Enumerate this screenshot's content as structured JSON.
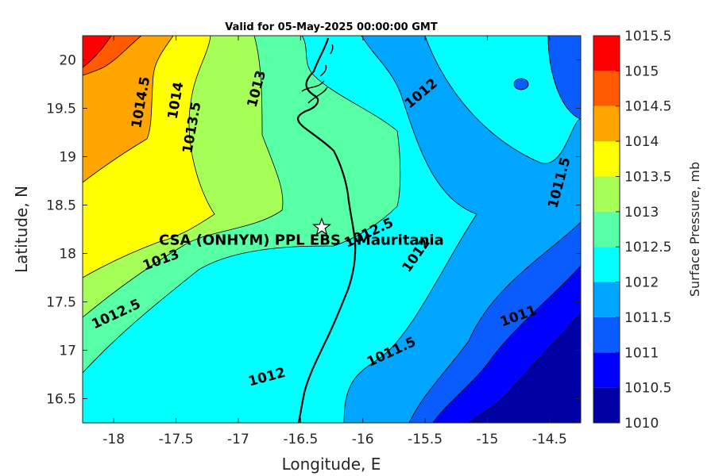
{
  "chart_data": {
    "type": "contour",
    "title": "Valid for 05-May-2025 00:00:00 GMT",
    "xlabel": "Longitude, E",
    "ylabel": "Latitude, N",
    "xlim": [
      -18.25,
      -14.25
    ],
    "ylim": [
      16.25,
      20.25
    ],
    "xticks": [
      -18,
      -17.5,
      -17,
      -16.5,
      -16,
      -15.5,
      -15,
      -14.5
    ],
    "yticks": [
      16.5,
      17,
      17.5,
      18,
      18.5,
      19,
      19.5,
      20
    ],
    "xtick_labels": [
      "-18",
      "-17.5",
      "-17",
      "-16.5",
      "-16",
      "-15.5",
      "-15",
      "-14.5"
    ],
    "ytick_labels": [
      "16.5",
      "17",
      "17.5",
      "18",
      "18.5",
      "19",
      "19.5",
      "20"
    ],
    "colorbar": {
      "label": "Surface Pressure, mb",
      "levels": [
        1010,
        1010.5,
        1011,
        1011.5,
        1012,
        1012.5,
        1013,
        1013.5,
        1014,
        1014.5,
        1015,
        1015.5
      ],
      "tick_labels": [
        "1010",
        "1010.5",
        "1011",
        "1011.5",
        "1012",
        "1012.5",
        "1013",
        "1013.5",
        "1014",
        "1014.5",
        "1015",
        "1015.5"
      ],
      "colors": [
        "#0000a5",
        "#0000ff",
        "#0a5cff",
        "#00a5ff",
        "#00ffff",
        "#57ffa5",
        "#a5ff57",
        "#ffff00",
        "#ffa500",
        "#ff5a00",
        "#ff0000",
        "#a50000"
      ]
    },
    "contour_labels": [
      {
        "text": "1014.5",
        "lon": -17.78,
        "lat": 19.56
      },
      {
        "text": "1014",
        "lon": -17.5,
        "lat": 19.58
      },
      {
        "text": "1013.5",
        "lon": -17.37,
        "lat": 19.3
      },
      {
        "text": "1013",
        "lon": -16.85,
        "lat": 19.7
      },
      {
        "text": "1012",
        "lon": -15.53,
        "lat": 19.65
      },
      {
        "text": "1011.5",
        "lon": -14.42,
        "lat": 18.73
      },
      {
        "text": "1013",
        "lon": -17.62,
        "lat": 17.93
      },
      {
        "text": "1012.5",
        "lon": -17.98,
        "lat": 17.37
      },
      {
        "text": "1012.5",
        "lon": -15.95,
        "lat": 18.21
      },
      {
        "text": "1012",
        "lon": -15.57,
        "lat": 17.98
      },
      {
        "text": "1012",
        "lon": -16.77,
        "lat": 16.72
      },
      {
        "text": "1011.5",
        "lon": -15.77,
        "lat": 16.98
      },
      {
        "text": "1011",
        "lon": -14.75,
        "lat": 17.35
      }
    ],
    "site": {
      "name": "CSA (ONHYM) PPL EBS  - Mauritania",
      "lon": -16.33,
      "lat": 18.27
    }
  }
}
